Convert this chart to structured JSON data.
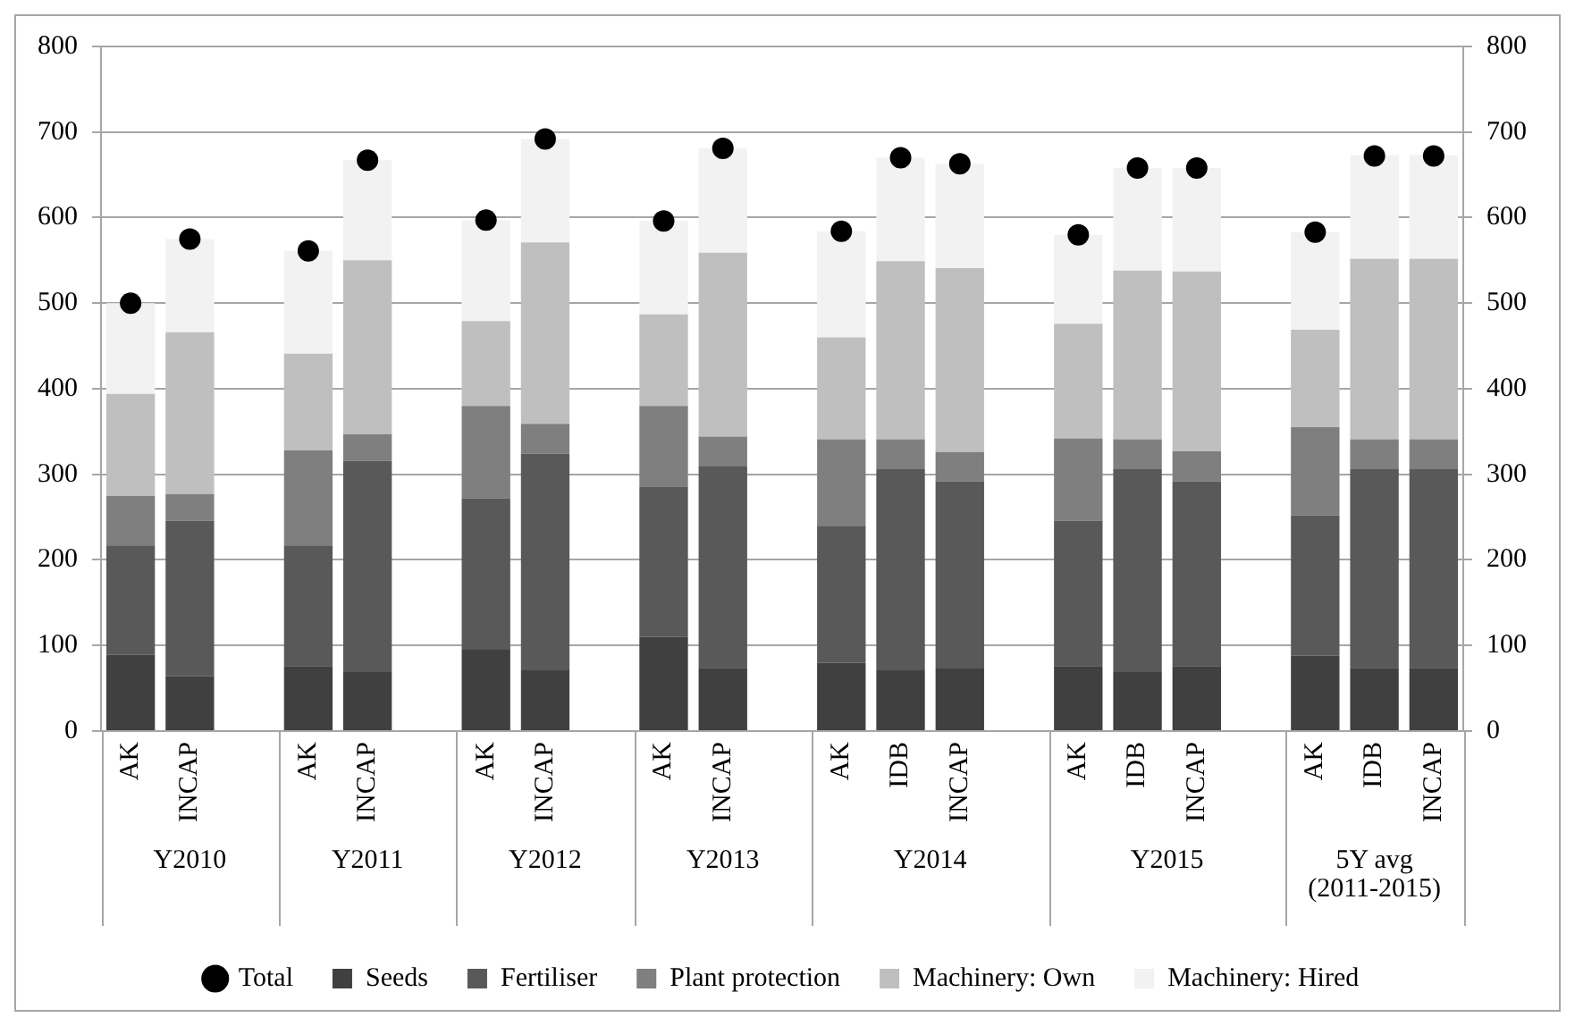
{
  "chart_data": {
    "type": "bar",
    "stacked": true,
    "categories": [
      "AK",
      "INCAP",
      null,
      "AK",
      "INCAP",
      null,
      "AK",
      "INCAP",
      null,
      "AK",
      "INCAP",
      null,
      "AK",
      "IDB",
      "INCAP",
      null,
      "AK",
      "IDB",
      "INCAP",
      null,
      "AK",
      "IDB",
      "INCAP"
    ],
    "series": [
      {
        "name": "Seeds",
        "color": "#404040",
        "values": [
          89,
          64,
          null,
          76,
          69,
          null,
          95,
          71,
          null,
          110,
          74,
          null,
          80,
          71,
          73,
          null,
          76,
          69,
          76,
          null,
          88,
          74,
          74
        ]
      },
      {
        "name": "Fertiliser",
        "color": "#595959",
        "values": [
          128,
          182,
          null,
          141,
          247,
          null,
          177,
          253,
          null,
          175,
          236,
          null,
          160,
          235,
          219,
          null,
          170,
          237,
          216,
          null,
          164,
          232,
          232
        ]
      },
      {
        "name": "Plant protection",
        "color": "#7f7f7f",
        "values": [
          58,
          31,
          null,
          111,
          31,
          null,
          108,
          35,
          null,
          95,
          34,
          null,
          101,
          35,
          34,
          null,
          96,
          35,
          35,
          null,
          103,
          35,
          35
        ]
      },
      {
        "name": "Machinery: Own",
        "color": "#bfbfbf",
        "values": [
          119,
          189,
          null,
          113,
          203,
          null,
          99,
          212,
          null,
          107,
          215,
          null,
          119,
          208,
          215,
          null,
          134,
          197,
          210,
          null,
          114,
          211,
          211
        ]
      },
      {
        "name": "Machinery: Hired",
        "color": "#f2f2f2",
        "values": [
          106,
          109,
          null,
          120,
          117,
          null,
          118,
          121,
          null,
          109,
          122,
          null,
          124,
          121,
          122,
          null,
          104,
          120,
          121,
          null,
          114,
          121,
          121
        ]
      },
      {
        "name": "Total",
        "type": "scatter",
        "color": "#000000",
        "values": [
          500,
          575,
          null,
          561,
          667,
          null,
          597,
          692,
          null,
          596,
          681,
          null,
          584,
          670,
          663,
          null,
          580,
          658,
          658,
          null,
          583,
          672,
          672
        ]
      }
    ],
    "ylim": [
      0,
      800
    ],
    "yticks": [
      0,
      100,
      200,
      300,
      400,
      500,
      600,
      700,
      800
    ],
    "y2lim": [
      0,
      800
    ],
    "y2ticks": [
      0,
      100,
      200,
      300,
      400,
      500,
      600,
      700,
      800
    ],
    "annotations": [
      "Y2010",
      "Y2011",
      "Y2012",
      "Y2013",
      "Y2014",
      "Y2015",
      "5Y avg (2011-2015)"
    ],
    "grid": "y",
    "legend": "bottom",
    "marker": "circle"
  }
}
